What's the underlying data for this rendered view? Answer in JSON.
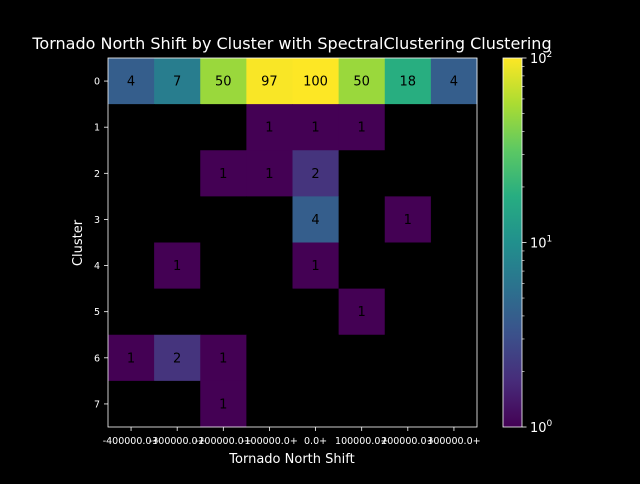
{
  "chart_data": {
    "type": "heatmap",
    "title": "Tornado North Shift by Cluster with SpectralClustering Clustering",
    "xlabel": "Tornado North Shift",
    "ylabel": "Cluster",
    "x_tick_labels": [
      "-400000.0+",
      "-300000.0+",
      "-200000.0+",
      "-100000.0+",
      "0.0+",
      "100000.0+",
      "200000.0+",
      "300000.0+"
    ],
    "y_tick_labels": [
      "0",
      "1",
      "2",
      "3",
      "4",
      "5",
      "6",
      "7"
    ],
    "values": [
      [
        4,
        7,
        50,
        97,
        100,
        50,
        18,
        4
      ],
      [
        0,
        0,
        0,
        1,
        1,
        1,
        0,
        0
      ],
      [
        0,
        0,
        1,
        1,
        2,
        0,
        0,
        0
      ],
      [
        0,
        0,
        0,
        0,
        4,
        0,
        1,
        0
      ],
      [
        0,
        1,
        0,
        0,
        1,
        0,
        0,
        0
      ],
      [
        0,
        0,
        0,
        0,
        0,
        1,
        0,
        0
      ],
      [
        1,
        2,
        1,
        0,
        0,
        0,
        0,
        0
      ],
      [
        0,
        0,
        1,
        0,
        0,
        0,
        0,
        0
      ]
    ],
    "colorscale": "viridis",
    "color_scale_type": "log",
    "color_range": [
      1,
      100
    ],
    "colorbar_ticks": [
      {
        "value": 1,
        "base": "10",
        "exp": "0"
      },
      {
        "value": 10,
        "base": "10",
        "exp": "1"
      },
      {
        "value": 100,
        "base": "10",
        "exp": "2"
      }
    ],
    "background_color": "#000000",
    "text_color": "#ffffff",
    "cell_label_color": "#000000"
  }
}
